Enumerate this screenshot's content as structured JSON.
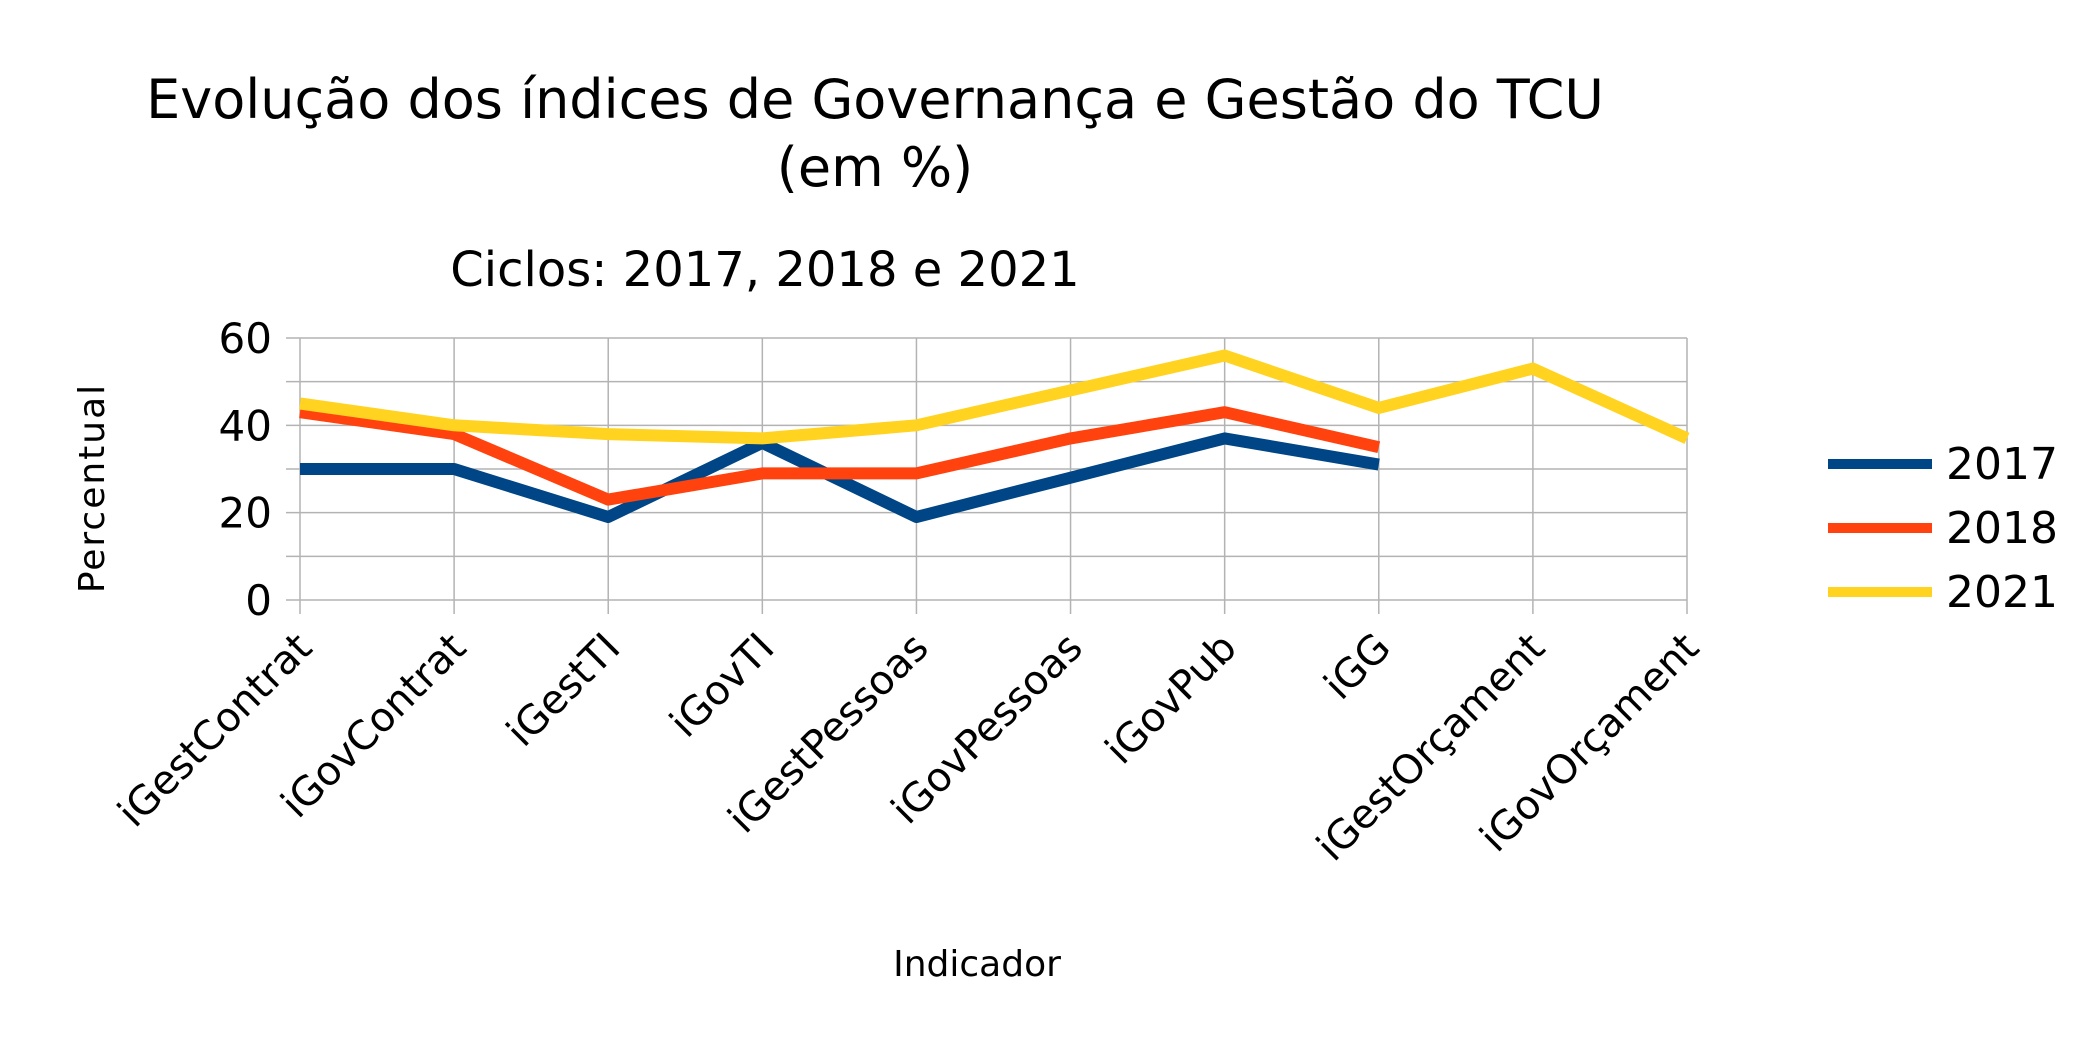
{
  "chart_data": {
    "type": "line",
    "title_line1": "Evolução dos índices de Governança e Gestão do TCU",
    "title_line2": "(em %)",
    "subtitle": "Ciclos: 2017, 2018 e 2021",
    "xlabel": "Indicador",
    "ylabel": "Percentual",
    "ylim": [
      0,
      60
    ],
    "yticks": [
      "0",
      "20",
      "40",
      "60"
    ],
    "grid": true,
    "legend_position": "right",
    "categories": [
      "iGestContrat",
      "iGovContrat",
      "iGestTI",
      "iGovTI",
      "iGestPessoas",
      "iGovPessoas",
      "iGovPub",
      "iGG",
      "iGestOrçament",
      "iGovOrçament"
    ],
    "series": [
      {
        "name": "2017",
        "color": "#004586",
        "values": [
          30,
          30,
          19,
          36,
          19,
          28,
          37,
          31,
          null,
          null
        ]
      },
      {
        "name": "2018",
        "color": "#ff420e",
        "values": [
          43,
          38,
          23,
          29,
          29,
          37,
          43,
          35,
          null,
          null
        ]
      },
      {
        "name": "2021",
        "color": "#ffd320",
        "values": [
          45,
          40,
          38,
          37,
          40,
          48,
          56,
          44,
          53,
          37
        ]
      }
    ]
  }
}
